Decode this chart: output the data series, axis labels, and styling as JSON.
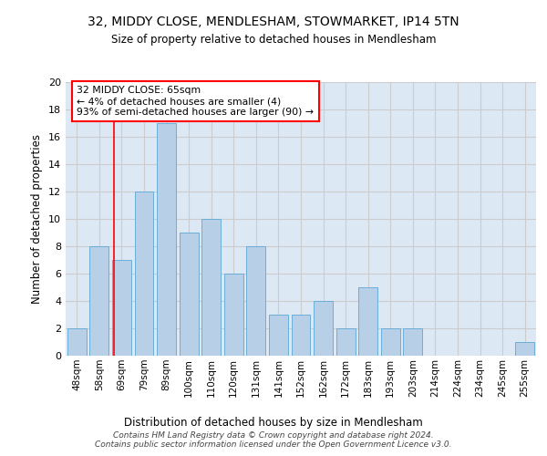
{
  "title1": "32, MIDDY CLOSE, MENDLESHAM, STOWMARKET, IP14 5TN",
  "title2": "Size of property relative to detached houses in Mendlesham",
  "xlabel": "Distribution of detached houses by size in Mendlesham",
  "ylabel": "Number of detached properties",
  "categories": [
    "48sqm",
    "58sqm",
    "69sqm",
    "79sqm",
    "89sqm",
    "100sqm",
    "110sqm",
    "120sqm",
    "131sqm",
    "141sqm",
    "152sqm",
    "162sqm",
    "172sqm",
    "183sqm",
    "193sqm",
    "203sqm",
    "214sqm",
    "224sqm",
    "234sqm",
    "245sqm",
    "255sqm"
  ],
  "values": [
    2,
    8,
    7,
    12,
    17,
    9,
    10,
    6,
    8,
    3,
    3,
    4,
    2,
    5,
    2,
    2,
    0,
    0,
    0,
    0,
    1
  ],
  "bar_color": "#b8cfe8",
  "bar_edge_color": "#6baed6",
  "annotation_text": "32 MIDDY CLOSE: 65sqm\n← 4% of detached houses are smaller (4)\n93% of semi-detached houses are larger (90) →",
  "annotation_box_color": "white",
  "annotation_box_edge_color": "red",
  "subject_line_color": "red",
  "ylim": [
    0,
    20
  ],
  "yticks": [
    0,
    2,
    4,
    6,
    8,
    10,
    12,
    14,
    16,
    18,
    20
  ],
  "grid_color": "#cccccc",
  "bg_color": "#dde8f5",
  "footer": "Contains HM Land Registry data © Crown copyright and database right 2024.\nContains public sector information licensed under the Open Government Licence v3.0."
}
